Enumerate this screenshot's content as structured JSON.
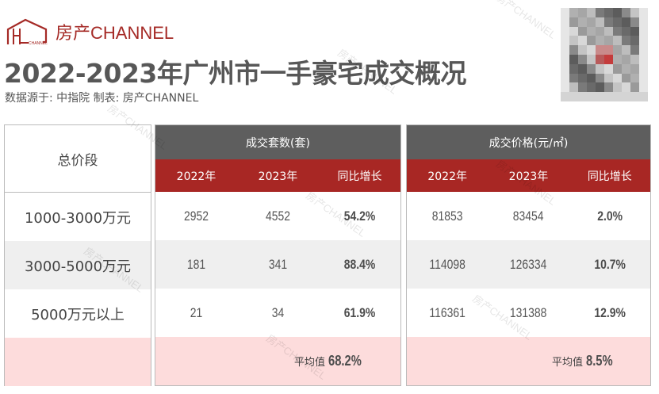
{
  "brand": {
    "logo_text": "房产CHANNEL",
    "logo_icon": "house-outline-icon",
    "accent_color": "#a52a26"
  },
  "title": "2022-2023年广州市一手豪宅成交概况",
  "source": "数据源于: 中指院  制表: 房产CHANNEL",
  "qr_code": "blurred-qr-code",
  "watermark": "房产CHANNEL",
  "table": {
    "row_header_label": "总价段",
    "groups": [
      {
        "title": "成交套数(套)",
        "columns": [
          "2022年",
          "2023年",
          "同比增长"
        ],
        "rows": [
          [
            "2952",
            "4552",
            "54.2%"
          ],
          [
            "181",
            "341",
            "88.4%"
          ],
          [
            "21",
            "34",
            "61.9%"
          ]
        ],
        "average_label": "平均值",
        "average_value": "68.2%"
      },
      {
        "title": "成交价格(元/㎡)",
        "columns": [
          "2022年",
          "2023年",
          "同比增长"
        ],
        "rows": [
          [
            "81853",
            "83454",
            "2.0%"
          ],
          [
            "114098",
            "126334",
            "10.7%"
          ],
          [
            "116361",
            "131388",
            "12.9%"
          ]
        ],
        "average_label": "平均值",
        "average_value": "8.5%"
      }
    ],
    "row_labels": [
      "1000-3000万元",
      "3000-5000万元",
      "5000万元以上"
    ],
    "colors": {
      "group_header": "#5e5e5e",
      "column_header": "#a82724",
      "alt_row": "#efefef",
      "average_row": "#fddcdc"
    }
  }
}
